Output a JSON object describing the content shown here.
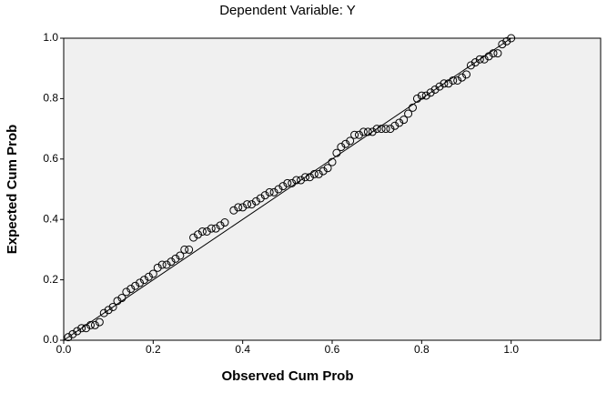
{
  "chart_data": {
    "type": "scatter",
    "title": "Dependent Variable: Y",
    "x_label": "Observed Cum Prob",
    "y_label": "Expected Cum Prob",
    "xlim": [
      0,
      1.2
    ],
    "ylim": [
      0,
      1
    ],
    "xticks": [
      {
        "value": 0,
        "label": "0.0"
      },
      {
        "value": 0.2,
        "label": "0.2"
      },
      {
        "value": 0.4,
        "label": "0.4"
      },
      {
        "value": 0.6,
        "label": "0.6"
      },
      {
        "value": 0.8,
        "label": "0.8"
      },
      {
        "value": 1,
        "label": "1.0"
      }
    ],
    "yticks": [
      {
        "value": 0,
        "label": "0.0"
      },
      {
        "value": 0.2,
        "label": "0.2"
      },
      {
        "value": 0.4,
        "label": "0.4"
      },
      {
        "value": 0.6,
        "label": "0.6"
      },
      {
        "value": 0.8,
        "label": "0.8"
      },
      {
        "value": 1,
        "label": "1.0"
      }
    ],
    "reference_line": {
      "x": [
        0,
        1
      ],
      "y": [
        0,
        1
      ]
    },
    "color": "#000000",
    "background": "#f0f0f0",
    "x": [
      0.01,
      0.02,
      0.03,
      0.04,
      0.05,
      0.06,
      0.07,
      0.08,
      0.09,
      0.1,
      0.11,
      0.12,
      0.13,
      0.14,
      0.15,
      0.16,
      0.17,
      0.18,
      0.19,
      0.2,
      0.21,
      0.22,
      0.23,
      0.24,
      0.25,
      0.26,
      0.27,
      0.28,
      0.29,
      0.3,
      0.31,
      0.32,
      0.33,
      0.34,
      0.35,
      0.36,
      0.38,
      0.39,
      0.4,
      0.41,
      0.42,
      0.43,
      0.44,
      0.45,
      0.46,
      0.47,
      0.48,
      0.49,
      0.5,
      0.51,
      0.52,
      0.53,
      0.54,
      0.55,
      0.56,
      0.57,
      0.58,
      0.59,
      0.6,
      0.61,
      0.62,
      0.63,
      0.64,
      0.65,
      0.66,
      0.67,
      0.68,
      0.69,
      0.7,
      0.71,
      0.72,
      0.73,
      0.74,
      0.75,
      0.76,
      0.77,
      0.78,
      0.79,
      0.8,
      0.81,
      0.82,
      0.83,
      0.84,
      0.85,
      0.86,
      0.87,
      0.88,
      0.89,
      0.9,
      0.91,
      0.92,
      0.93,
      0.94,
      0.95,
      0.96,
      0.97,
      0.98,
      0.99,
      1.0
    ],
    "values": [
      0.01,
      0.02,
      0.03,
      0.04,
      0.04,
      0.05,
      0.05,
      0.06,
      0.09,
      0.1,
      0.11,
      0.13,
      0.14,
      0.16,
      0.17,
      0.18,
      0.19,
      0.2,
      0.21,
      0.22,
      0.24,
      0.25,
      0.25,
      0.26,
      0.27,
      0.28,
      0.3,
      0.3,
      0.34,
      0.35,
      0.36,
      0.36,
      0.37,
      0.37,
      0.38,
      0.39,
      0.43,
      0.44,
      0.44,
      0.45,
      0.45,
      0.46,
      0.47,
      0.48,
      0.49,
      0.49,
      0.5,
      0.51,
      0.52,
      0.52,
      0.53,
      0.53,
      0.54,
      0.54,
      0.55,
      0.55,
      0.56,
      0.57,
      0.59,
      0.62,
      0.64,
      0.65,
      0.66,
      0.68,
      0.68,
      0.69,
      0.69,
      0.69,
      0.7,
      0.7,
      0.7,
      0.7,
      0.71,
      0.72,
      0.73,
      0.75,
      0.77,
      0.8,
      0.81,
      0.81,
      0.82,
      0.83,
      0.84,
      0.85,
      0.85,
      0.86,
      0.86,
      0.87,
      0.88,
      0.91,
      0.92,
      0.93,
      0.93,
      0.94,
      0.95,
      0.95,
      0.98,
      0.99,
      1.0
    ]
  }
}
